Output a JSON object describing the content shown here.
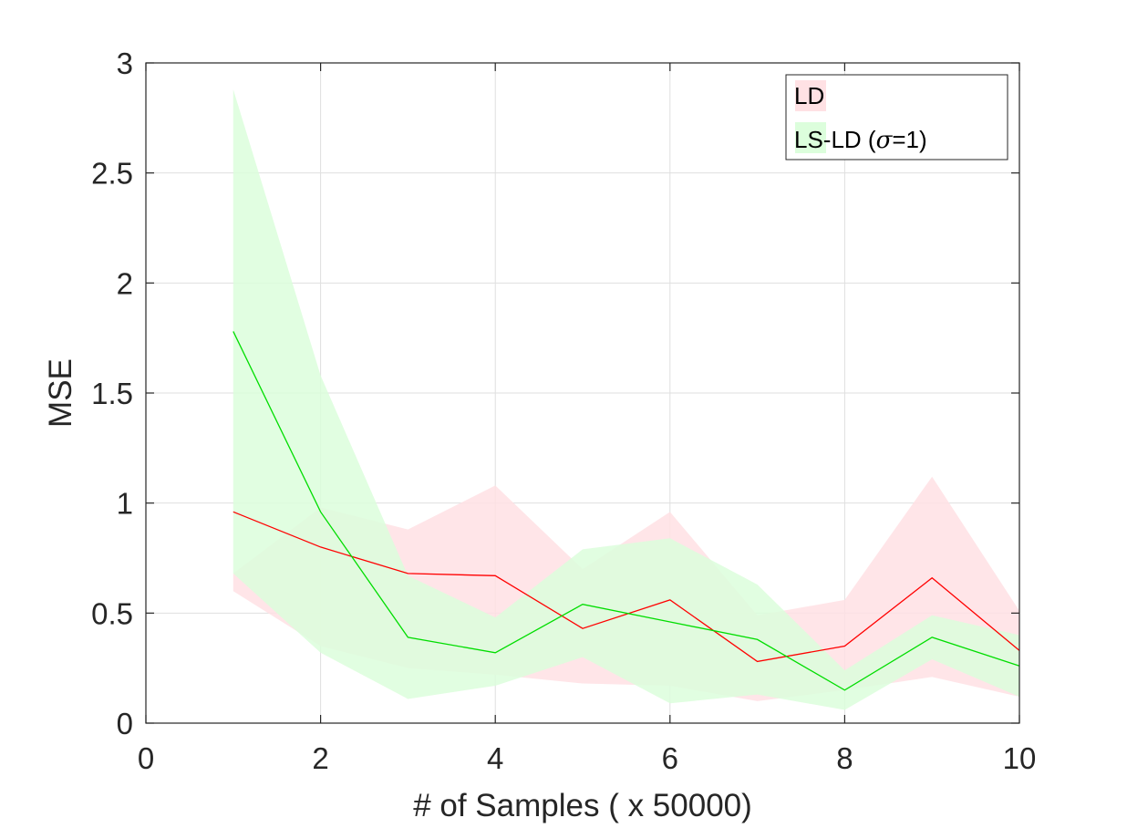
{
  "chart_data": {
    "type": "line",
    "title": "",
    "xlabel": "# of Samples ( x 50000)",
    "ylabel": "MSE",
    "xlim": [
      0,
      10
    ],
    "ylim": [
      0,
      3
    ],
    "xticks": [
      0,
      2,
      4,
      6,
      8,
      10
    ],
    "yticks": [
      0,
      0.5,
      1,
      1.5,
      2,
      2.5,
      3
    ],
    "xtick_labels": [
      "0",
      "2",
      "4",
      "6",
      "8",
      "10"
    ],
    "ytick_labels": [
      "0",
      "0.5",
      "1",
      "1.5",
      "2",
      "2.5",
      "3"
    ],
    "grid": true,
    "legend_position": "top-right",
    "x": [
      1,
      2,
      3,
      4,
      5,
      6,
      7,
      8,
      9,
      10
    ],
    "series": [
      {
        "name": "LD",
        "color": "#ff0000",
        "band_color": "#ffe1e4",
        "values": [
          0.96,
          0.8,
          0.68,
          0.67,
          0.43,
          0.56,
          0.28,
          0.35,
          0.66,
          0.33
        ],
        "upper": [
          0.68,
          0.98,
          0.88,
          1.08,
          0.7,
          0.96,
          0.49,
          0.56,
          1.12,
          0.51
        ],
        "lower": [
          0.6,
          0.35,
          0.25,
          0.22,
          0.18,
          0.17,
          0.1,
          0.15,
          0.21,
          0.12
        ]
      },
      {
        "name_prefix": "LS-LD (",
        "name_symbol": "σ",
        "name_suffix": "=1)",
        "color": "#00dd00",
        "band_color": "#dcfedc",
        "values": [
          1.78,
          0.96,
          0.39,
          0.32,
          0.54,
          0.46,
          0.38,
          0.15,
          0.39,
          0.26
        ],
        "upper": [
          2.88,
          1.58,
          0.67,
          0.48,
          0.79,
          0.84,
          0.63,
          0.24,
          0.49,
          0.4
        ],
        "lower": [
          0.68,
          0.32,
          0.11,
          0.17,
          0.3,
          0.09,
          0.13,
          0.06,
          0.29,
          0.12
        ]
      }
    ]
  }
}
